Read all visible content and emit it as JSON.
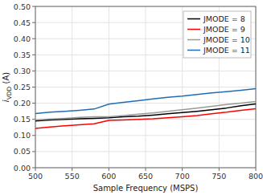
{
  "chart_data": {
    "type": "line",
    "xlabel": "Sample Frequency (MSPS)",
    "ylabel": "iVDD (A)",
    "x": [
      500,
      520,
      540,
      560,
      580,
      600,
      620,
      640,
      660,
      680,
      700,
      720,
      740,
      760,
      780,
      800
    ],
    "series": [
      {
        "name": "JMODE = 8",
        "color": "#000000",
        "values": [
          0.145,
          0.148,
          0.15,
          0.152,
          0.153,
          0.155,
          0.158,
          0.16,
          0.163,
          0.167,
          0.171,
          0.175,
          0.18,
          0.185,
          0.192,
          0.198
        ]
      },
      {
        "name": "JMODE = 9",
        "color": "#ff0000",
        "values": [
          0.122,
          0.126,
          0.13,
          0.133,
          0.136,
          0.147,
          0.148,
          0.15,
          0.152,
          0.155,
          0.158,
          0.162,
          0.167,
          0.172,
          0.178,
          0.183
        ]
      },
      {
        "name": "JMODE = 10",
        "color": "#999999",
        "values": [
          0.148,
          0.151,
          0.153,
          0.156,
          0.158,
          0.158,
          0.162,
          0.166,
          0.17,
          0.175,
          0.18,
          0.185,
          0.19,
          0.196,
          0.2,
          0.205
        ]
      },
      {
        "name": "JMODE = 11",
        "color": "#1f6eb5",
        "values": [
          0.168,
          0.172,
          0.175,
          0.178,
          0.182,
          0.197,
          0.203,
          0.208,
          0.213,
          0.218,
          0.222,
          0.227,
          0.232,
          0.236,
          0.24,
          0.245
        ]
      }
    ],
    "xlim": [
      500,
      800
    ],
    "ylim": [
      0,
      0.5
    ],
    "xticks": [
      500,
      550,
      600,
      650,
      700,
      750,
      800
    ],
    "yticks": [
      {
        "value": 0,
        "label": "0.00"
      },
      0.05,
      {
        "value": 0.1,
        "label": "0.10"
      },
      0.15,
      {
        "value": 0.2,
        "label": "0.20"
      },
      0.25,
      {
        "value": 0.3,
        "label": "0.30"
      },
      0.35,
      {
        "value": 0.4,
        "label": "0.40"
      },
      0.45,
      {
        "value": 0.5,
        "label": "0.50"
      }
    ],
    "grid": true,
    "legend": "upper right"
  }
}
